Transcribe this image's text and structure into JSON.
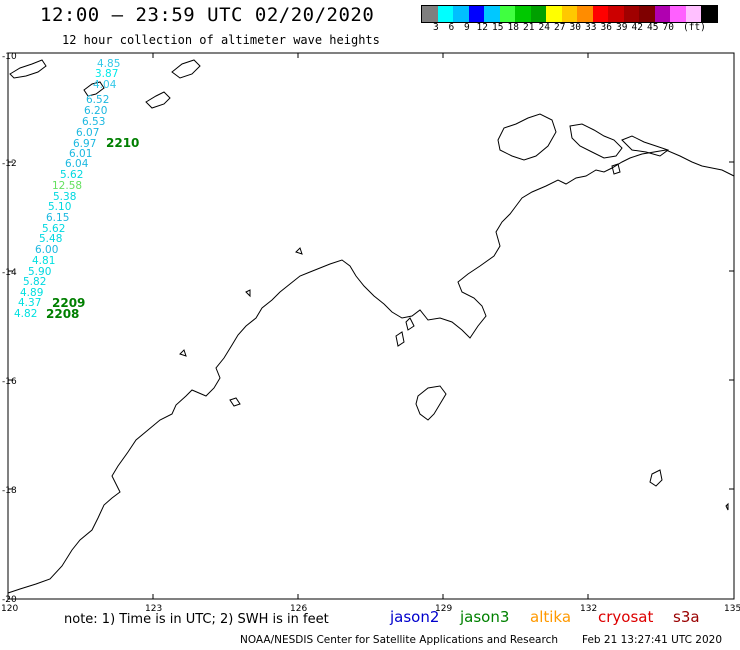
{
  "header": {
    "title": "12:00 – 23:59 UTC 02/20/2020",
    "subtitle": "12 hour collection of altimeter wave heights"
  },
  "color_scale": {
    "colors": [
      "#7f7f7f",
      "#00ffff",
      "#00bfff",
      "#0000ff",
      "#00c8ff",
      "#40ff40",
      "#00c800",
      "#00a000",
      "#ffff00",
      "#ffc800",
      "#ff8c00",
      "#ff0000",
      "#cc0000",
      "#a00000",
      "#7f0000",
      "#b000b0",
      "#ff60ff",
      "#ffc0ff",
      "#000000"
    ],
    "labels": [
      "3",
      "6",
      "9",
      "12",
      "15",
      "18",
      "21",
      "24",
      "27",
      "30",
      "33",
      "36",
      "39",
      "42",
      "45",
      "70",
      "(ft)"
    ]
  },
  "axes": {
    "lat_labels": [
      "-10",
      "-12",
      "-14",
      "-16",
      "-18",
      "-20"
    ],
    "lon_labels": [
      "120",
      "123",
      "126",
      "129",
      "132",
      "135"
    ]
  },
  "wave_heights": [
    {
      "value": "4.85",
      "color": "#33c8e8"
    },
    {
      "value": "3.87",
      "color": "#00e8e8"
    },
    {
      "value": "4.04",
      "color": "#33c8e8"
    },
    {
      "value": "6.52",
      "color": "#1cb8e0"
    },
    {
      "value": "6.20",
      "color": "#1cb8e0"
    },
    {
      "value": "6.53",
      "color": "#1cb8e0"
    },
    {
      "value": "6.07",
      "color": "#1cb8e0"
    },
    {
      "value": "6.97",
      "color": "#1cb8e0"
    },
    {
      "value": "6.01",
      "color": "#1cb8e0"
    },
    {
      "value": "6.04",
      "color": "#1cb8e0"
    },
    {
      "value": "5.62",
      "color": "#00d8e0"
    },
    {
      "value": "12.58",
      "color": "#66e060"
    },
    {
      "value": "5.38",
      "color": "#00d8e0"
    },
    {
      "value": "5.10",
      "color": "#00d8e0"
    },
    {
      "value": "6.15",
      "color": "#1cb8e0"
    },
    {
      "value": "5.62",
      "color": "#00d8e0"
    },
    {
      "value": "5.48",
      "color": "#00d8e0"
    },
    {
      "value": "6.00",
      "color": "#1cb8e0"
    },
    {
      "value": "4.81",
      "color": "#00e0e0"
    },
    {
      "value": "5.90",
      "color": "#00d8e0"
    },
    {
      "value": "5.82",
      "color": "#00d8e0"
    },
    {
      "value": "4.89",
      "color": "#00e0e0"
    },
    {
      "value": "4.37",
      "color": "#00e0e0"
    },
    {
      "value": "4.82",
      "color": "#00e0e0"
    }
  ],
  "track_times": [
    {
      "value": "2210",
      "color": "#007f00"
    },
    {
      "value": "2209",
      "color": "#007f00"
    },
    {
      "value": "2208",
      "color": "#007f00"
    }
  ],
  "note": "note: 1) Time is in UTC; 2) SWH is in feet",
  "satellites": [
    {
      "name": "jason2",
      "color": "#0000cc"
    },
    {
      "name": "jason3",
      "color": "#008000"
    },
    {
      "name": "altika",
      "color": "#ff9900"
    },
    {
      "name": "cryosat",
      "color": "#dd0000"
    },
    {
      "name": "s3a",
      "color": "#990000"
    }
  ],
  "footer": {
    "credit": "NOAA/NESDIS Center for Satellite Applications and Research",
    "timestamp": "Feb 21 13:27:41 UTC 2020"
  }
}
